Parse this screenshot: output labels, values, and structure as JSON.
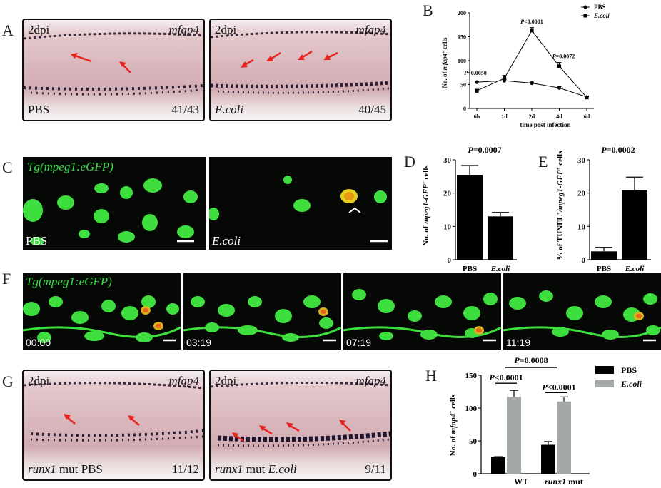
{
  "panels": {
    "A": {
      "label": "A",
      "left": {
        "time": "2dpi",
        "gene": "mfap4",
        "condition": "PBS",
        "ratio": "41/43"
      },
      "right": {
        "time": "2dpi",
        "gene": "mfap4",
        "condition": "E.coli",
        "ratio": "40/45"
      }
    },
    "B": {
      "label": "B",
      "ylabel_prefix": "No. of ",
      "ylabel_gene": "mfap4",
      "ylabel_sup": "+",
      "ylabel_suffix": " cells",
      "xlabel": "time post infection",
      "legend": [
        "PBS",
        "E.coli"
      ],
      "annotations": [
        "P=0.0050",
        "P<0.0001",
        "P=0.0072"
      ],
      "yticks": [
        "0",
        "50",
        "100",
        "150",
        "200"
      ],
      "xticks": [
        "6h",
        "1d",
        "2d",
        "4d",
        "6d"
      ]
    },
    "C": {
      "label": "C",
      "transgene": "Tg(mpeg1:eGFP)",
      "left_condition": "PBS",
      "right_condition": "E.coli"
    },
    "D": {
      "label": "D",
      "ylabel_prefix": "No. of ",
      "ylabel_gene": "mpeg1-GFP",
      "ylabel_sup": "+",
      "ylabel_suffix": " cells",
      "pvalue": "P=0.0007",
      "yticks": [
        "0",
        "10",
        "20",
        "30"
      ],
      "categories": [
        "PBS",
        "E.coli"
      ]
    },
    "E": {
      "label": "E",
      "ylabel_pre": "% of TUNEL",
      "ylabel_sup1": "+",
      "ylabel_gene": "/mpeg1-GFP",
      "ylabel_sup2": "+",
      "ylabel_suffix": " cells",
      "pvalue": "P=0.0002",
      "yticks": [
        "0",
        "10",
        "20",
        "30"
      ],
      "categories": [
        "PBS",
        "E.coli"
      ]
    },
    "F": {
      "label": "F",
      "transgene": "Tg(mpeg1:eGFP)",
      "timestamps": [
        "00:00",
        "03:19",
        "07:19",
        "11:19"
      ]
    },
    "G": {
      "label": "G",
      "left": {
        "time": "2dpi",
        "gene": "mfap4",
        "condition_gene": "runx1",
        "condition_rest": " mut PBS",
        "ratio": "11/12"
      },
      "right": {
        "time": "2dpi",
        "gene": "mfap4",
        "condition_gene": "runx1",
        "condition_rest": " mut ",
        "condition_bact": "E.coli",
        "ratio": "9/11"
      }
    },
    "H": {
      "label": "H",
      "ylabel_prefix": "No. of ",
      "ylabel_gene": "mfap4",
      "ylabel_sup": "+",
      "ylabel_suffix": " cells",
      "legend": [
        "PBS",
        "E.coli"
      ],
      "pvalues": [
        "P=0.0008",
        "P<0.0001",
        "P<0.0001"
      ],
      "yticks": [
        "0",
        "50",
        "100",
        "150"
      ],
      "groups": [
        "WT",
        "runx1 mut"
      ],
      "group_wt": "WT",
      "group_mut_gene": "runx1",
      "group_mut_rest": " mut"
    }
  },
  "chart_data": [
    {
      "panel": "B",
      "type": "line",
      "x": [
        "6h",
        "1d",
        "2d",
        "4d",
        "6d"
      ],
      "series": [
        {
          "name": "PBS",
          "values": [
            55,
            58,
            53,
            43,
            24
          ],
          "errors": [
            2,
            3,
            2,
            3,
            2
          ]
        },
        {
          "name": "E.coli",
          "values": [
            37,
            63,
            163,
            88,
            23
          ],
          "errors": [
            3,
            6,
            6,
            8,
            2
          ]
        }
      ],
      "ylim": [
        0,
        200
      ],
      "xlabel": "time post infection",
      "ylabel": "No. of mfap4+ cells",
      "legend": "top-right"
    },
    {
      "panel": "D",
      "type": "bar",
      "categories": [
        "PBS",
        "E.coli"
      ],
      "values": [
        25.5,
        13
      ],
      "errors": [
        2.8,
        1.2
      ],
      "ylim": [
        0,
        30
      ],
      "ylabel": "No. of mpeg1-GFP+ cells"
    },
    {
      "panel": "E",
      "type": "bar",
      "categories": [
        "PBS",
        "E.coli"
      ],
      "values": [
        2.5,
        21
      ],
      "errors": [
        1.2,
        3.8
      ],
      "ylim": [
        0,
        30
      ],
      "ylabel": "% of TUNEL+/mpeg1-GFP+ cells"
    },
    {
      "panel": "H",
      "type": "bar",
      "categories": [
        "WT",
        "runx1 mut"
      ],
      "series": [
        {
          "name": "PBS",
          "values": [
            25,
            44
          ],
          "errors": [
            1,
            5
          ]
        },
        {
          "name": "E.coli",
          "values": [
            117,
            110
          ],
          "errors": [
            10,
            7
          ]
        }
      ],
      "ylim": [
        0,
        150
      ],
      "ylabel": "No. of mfap4+ cells",
      "legend": "top-right"
    }
  ],
  "colors": {
    "pbs_bar": "#000000",
    "ecoli_bar": "#a4a9a7",
    "arrow": "#e8231f",
    "gfp": "#3ede3e"
  }
}
